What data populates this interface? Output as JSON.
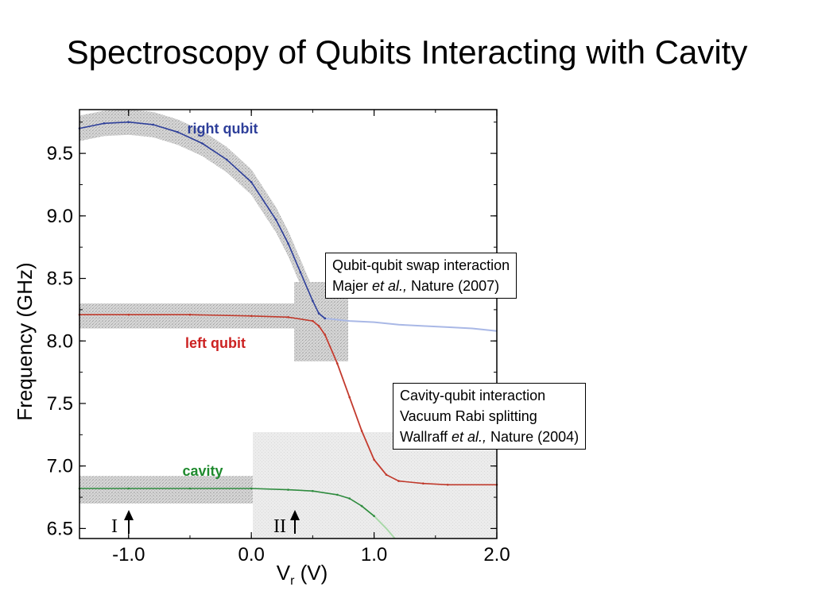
{
  "title": "Spectroscopy of Qubits Interacting with Cavity",
  "chart_data": {
    "type": "line",
    "title": "",
    "xlabel": "V",
    "xlabel_sub": "r",
    "xlabel_unit": "(V)",
    "ylabel": "Frequency (GHz)",
    "xlim": [
      -1.4,
      2.0
    ],
    "ylim": [
      6.42,
      9.85
    ],
    "x_ticks": [
      -1.0,
      0.0,
      1.0,
      2.0
    ],
    "x_tick_labels": [
      "-1.0",
      "0.0",
      "1.0",
      "2.0"
    ],
    "y_ticks": [
      6.5,
      7.0,
      7.5,
      8.0,
      8.5,
      9.0,
      9.5
    ],
    "y_tick_labels": [
      "6.5",
      "7.0",
      "7.5",
      "8.0",
      "8.5",
      "9.0",
      "9.5"
    ],
    "series": [
      {
        "name": "right qubit",
        "color": "#2e3f9a",
        "x": [
          -1.4,
          -1.2,
          -1.0,
          -0.8,
          -0.6,
          -0.4,
          -0.2,
          0.0,
          0.2,
          0.3,
          0.4,
          0.5,
          0.55,
          0.6,
          0.8,
          1.0,
          1.2,
          1.4,
          1.6,
          1.8,
          2.0
        ],
        "y": [
          9.7,
          9.74,
          9.75,
          9.73,
          9.67,
          9.58,
          9.45,
          9.27,
          8.97,
          8.78,
          8.55,
          8.32,
          8.22,
          8.18,
          8.16,
          8.15,
          8.13,
          8.12,
          8.11,
          8.1,
          8.08
        ]
      },
      {
        "name": "left qubit",
        "color": "#c0392b",
        "x": [
          -1.4,
          -1.0,
          -0.5,
          0.0,
          0.3,
          0.5,
          0.55,
          0.6,
          0.7,
          0.8,
          0.9,
          1.0,
          1.1,
          1.2,
          1.4,
          1.6,
          2.0
        ],
        "y": [
          8.21,
          8.21,
          8.21,
          8.2,
          8.19,
          8.16,
          8.12,
          8.05,
          7.82,
          7.55,
          7.28,
          7.05,
          6.93,
          6.88,
          6.86,
          6.85,
          6.85
        ]
      },
      {
        "name": "cavity",
        "color": "#2e8b3e",
        "x": [
          -1.4,
          -1.0,
          -0.5,
          0.0,
          0.3,
          0.5,
          0.7,
          0.8,
          0.9,
          1.0,
          1.1,
          1.17
        ],
        "y": [
          6.82,
          6.82,
          6.82,
          6.82,
          6.81,
          6.8,
          6.77,
          6.74,
          6.68,
          6.6,
          6.5,
          6.42
        ]
      }
    ],
    "annotations": {
      "right_qubit_label": "right qubit",
      "left_qubit_label": "left qubit",
      "cavity_label": "cavity",
      "marker_I": "I",
      "marker_II": "II"
    },
    "colors": {
      "right_label": "#2e3f9a",
      "left_label": "#cc2222",
      "cavity_label": "#1f8a2e",
      "right_extrapolation": "#a9b8e6",
      "left_extrapolation": "#efa3a3",
      "cavity_extrapolation": "#a8d8a8",
      "data_band": "#cfcfcf"
    }
  },
  "notes": {
    "swap": {
      "line1": "Qubit-qubit swap interaction",
      "line2_pre": "Majer ",
      "line2_ital": "et al.,",
      "line2_post": " Nature (2007)"
    },
    "rabi": {
      "line1": "Cavity-qubit interaction",
      "line2": "Vacuum Rabi splitting",
      "line3_pre": "Wallraff ",
      "line3_ital": "et al.,",
      "line3_post": " Nature (2004)"
    }
  }
}
